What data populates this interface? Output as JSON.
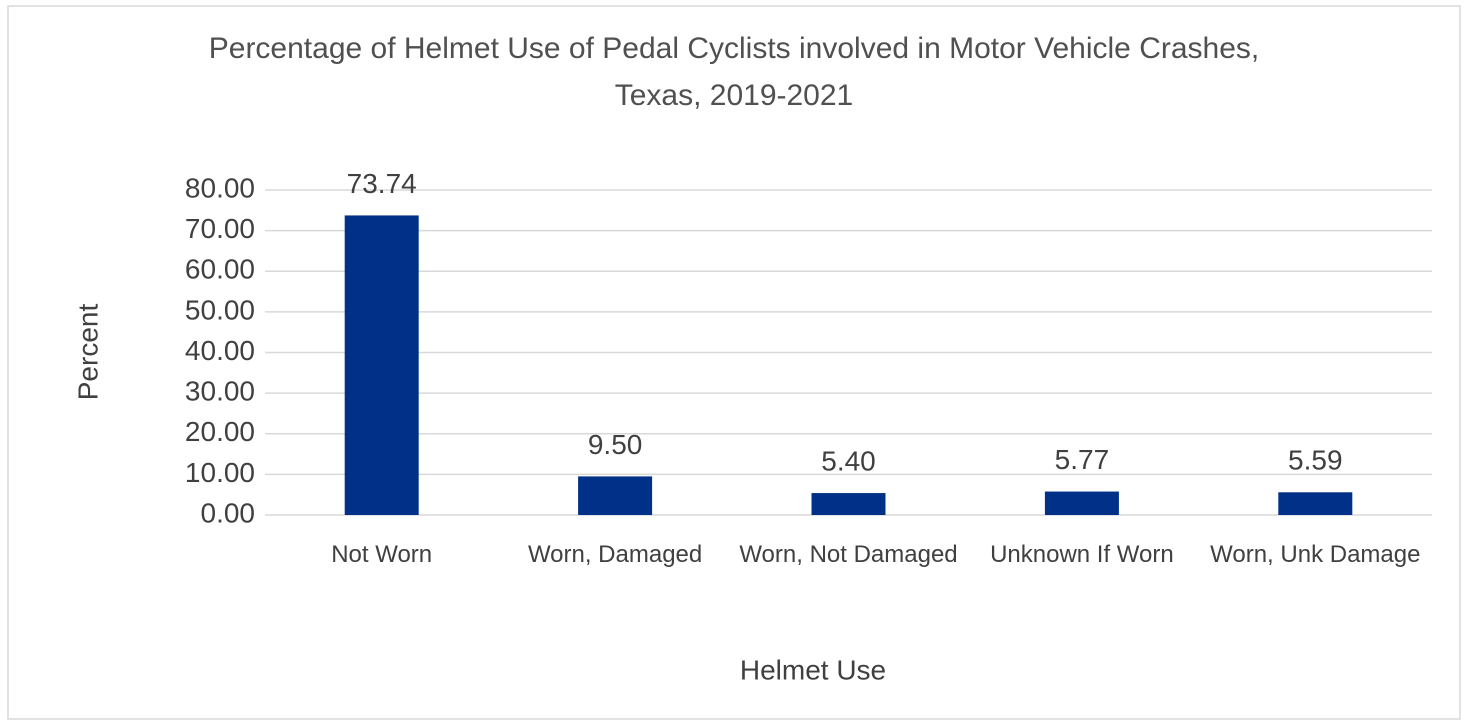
{
  "chart_data": {
    "type": "bar",
    "title": "Percentage of Helmet Use of Pedal Cyclists involved in Motor Vehicle Crashes, Texas, 2019-2021",
    "x_label": "Helmet Use",
    "y_label": "Percent",
    "categories": [
      "Not Worn",
      "Worn, Damaged",
      "Worn, Not Damaged",
      "Unknown If Worn",
      "Worn, Unk Damage"
    ],
    "values": [
      73.74,
      9.5,
      5.4,
      5.77,
      5.59
    ],
    "value_labels": [
      "73.74",
      "9.50",
      "5.40",
      "5.77",
      "5.59"
    ],
    "color": "#003087",
    "ylim": [
      0,
      80
    ],
    "yticks": [
      {
        "value": 0,
        "label": "0.00"
      },
      {
        "value": 10,
        "label": "10.00"
      },
      {
        "value": 20,
        "label": "20.00"
      },
      {
        "value": 30,
        "label": "30.00"
      },
      {
        "value": 40,
        "label": "40.00"
      },
      {
        "value": 50,
        "label": "50.00"
      },
      {
        "value": 60,
        "label": "60.00"
      },
      {
        "value": 70,
        "label": "70.00"
      },
      {
        "value": 80,
        "label": "80.00"
      }
    ],
    "grid": true
  }
}
